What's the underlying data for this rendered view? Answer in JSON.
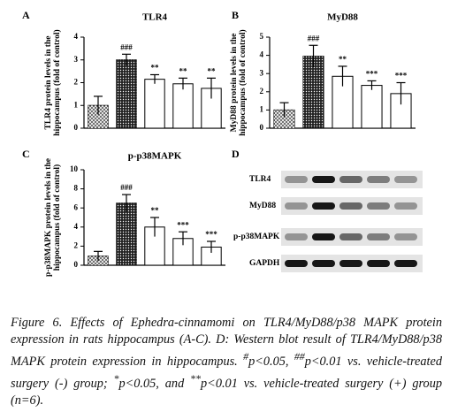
{
  "chart_data": [
    {
      "type": "bar",
      "panel": "A",
      "title": "TLR4",
      "y_label": [
        "TLR4 protein levels in the",
        "hippocampus (fold of control)"
      ],
      "categories": [
        null,
        null,
        null,
        null,
        null
      ],
      "values": [
        1.0,
        3.0,
        2.15,
        1.95,
        1.75
      ],
      "errors": [
        0.4,
        0.25,
        0.2,
        0.25,
        0.45
      ],
      "annotations": [
        null,
        "###",
        "**",
        "**",
        "**"
      ],
      "colors": [
        "#555555",
        "#222222",
        "#ffffff",
        "#ffffff",
        "#ffffff"
      ],
      "ylim": [
        0,
        4
      ],
      "yticks": [
        0,
        1,
        2,
        3,
        4
      ]
    },
    {
      "type": "bar",
      "panel": "B",
      "title": "MyD88",
      "y_label": [
        "MyD88 protein levels in the",
        "hippocampus (fold of control)"
      ],
      "categories": [
        null,
        null,
        null,
        null,
        null
      ],
      "values": [
        1.0,
        3.95,
        2.85,
        2.35,
        1.9
      ],
      "errors": [
        0.4,
        0.6,
        0.55,
        0.25,
        0.6
      ],
      "annotations": [
        null,
        "###",
        "**",
        "***",
        "***"
      ],
      "colors": [
        "#555555",
        "#222222",
        "#ffffff",
        "#ffffff",
        "#ffffff"
      ],
      "ylim": [
        0,
        5
      ],
      "yticks": [
        0,
        1,
        2,
        3,
        4,
        5
      ]
    },
    {
      "type": "bar",
      "panel": "C",
      "title": "p-p38MAPK",
      "y_label": [
        "p-p38MAPK protein levels in the",
        "hippocampus (fold of control)"
      ],
      "categories": [
        null,
        null,
        null,
        null,
        null
      ],
      "values": [
        0.95,
        6.5,
        4.0,
        2.8,
        1.9
      ],
      "errors": [
        0.5,
        0.9,
        1.0,
        0.7,
        0.6
      ],
      "annotations": [
        null,
        "###",
        "**",
        "***",
        "***"
      ],
      "colors": [
        "#555555",
        "#222222",
        "#ffffff",
        "#ffffff",
        "#ffffff"
      ],
      "ylim": [
        0,
        10
      ],
      "yticks": [
        0,
        2,
        4,
        6,
        8,
        10
      ]
    }
  ],
  "blot": {
    "panel": "D",
    "rows": [
      "TLR4",
      "MyD88",
      "p-p38MAPK",
      "GAPDH"
    ]
  },
  "caption": {
    "label": "Figure 6.",
    "text": "Effects of Ephedra-cinnamomi on TLR4/MyD88/p38 MAPK protein expression in rats hippocampus (A-C). D: Western blot result of TLR4/MyD88/p38 MAPK protein expression in hippocampus.",
    "notes": [
      {
        "sup": "#",
        "text": "p<0.05, "
      },
      {
        "sup": "##",
        "text": "p<0.01 vs. vehicle-treated surgery (-) group; "
      },
      {
        "sup": "*",
        "text": "p<0.05, and "
      },
      {
        "sup": "**",
        "text": "p<0.01 vs. vehicle-treated surgery (+) group (n=6)."
      }
    ]
  }
}
